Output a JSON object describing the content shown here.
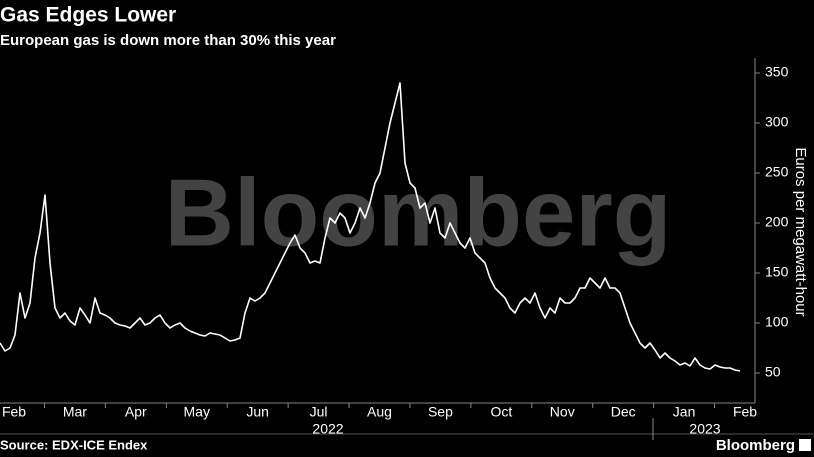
{
  "chart_data": {
    "type": "line",
    "title": "Gas Edges Lower",
    "subtitle": "European gas is down more than 30% this year",
    "y_label": "Euros per megawatt-hour",
    "source": "Source: EDX-ICE Endex",
    "logo": "Bloomberg",
    "watermark": "Bloomberg",
    "month_labels": [
      "Feb",
      "Mar",
      "Apr",
      "May",
      "Jun",
      "Jul",
      "Aug",
      "Sep",
      "Oct",
      "Nov",
      "Dec",
      "Jan",
      "Feb"
    ],
    "year_labels": [
      "2022",
      "2023"
    ],
    "color": "#ffffff",
    "ylim": [
      20,
      365
    ],
    "yticks": [
      50,
      100,
      150,
      200,
      250,
      300,
      350
    ],
    "values": [
      80,
      72,
      75,
      88,
      130,
      105,
      120,
      165,
      190,
      228,
      160,
      115,
      105,
      110,
      102,
      98,
      115,
      108,
      100,
      125,
      110,
      108,
      105,
      100,
      98,
      97,
      95,
      100,
      105,
      98,
      100,
      105,
      108,
      100,
      95,
      98,
      100,
      95,
      92,
      90,
      88,
      87,
      90,
      89,
      88,
      85,
      82,
      83,
      85,
      110,
      125,
      122,
      125,
      130,
      140,
      150,
      160,
      170,
      180,
      188,
      175,
      170,
      160,
      162,
      160,
      185,
      205,
      200,
      210,
      205,
      190,
      200,
      215,
      205,
      220,
      240,
      250,
      275,
      300,
      320,
      340,
      260,
      240,
      235,
      215,
      220,
      200,
      215,
      190,
      185,
      200,
      190,
      180,
      175,
      185,
      170,
      165,
      160,
      145,
      135,
      130,
      125,
      115,
      110,
      120,
      125,
      120,
      130,
      115,
      105,
      115,
      110,
      125,
      120,
      120,
      125,
      135,
      135,
      145,
      140,
      135,
      145,
      135,
      135,
      130,
      115,
      100,
      90,
      80,
      75,
      80,
      73,
      65,
      70,
      65,
      62,
      58,
      60,
      57,
      65,
      58,
      55,
      54,
      58,
      56,
      55,
      55,
      53,
      52
    ]
  }
}
